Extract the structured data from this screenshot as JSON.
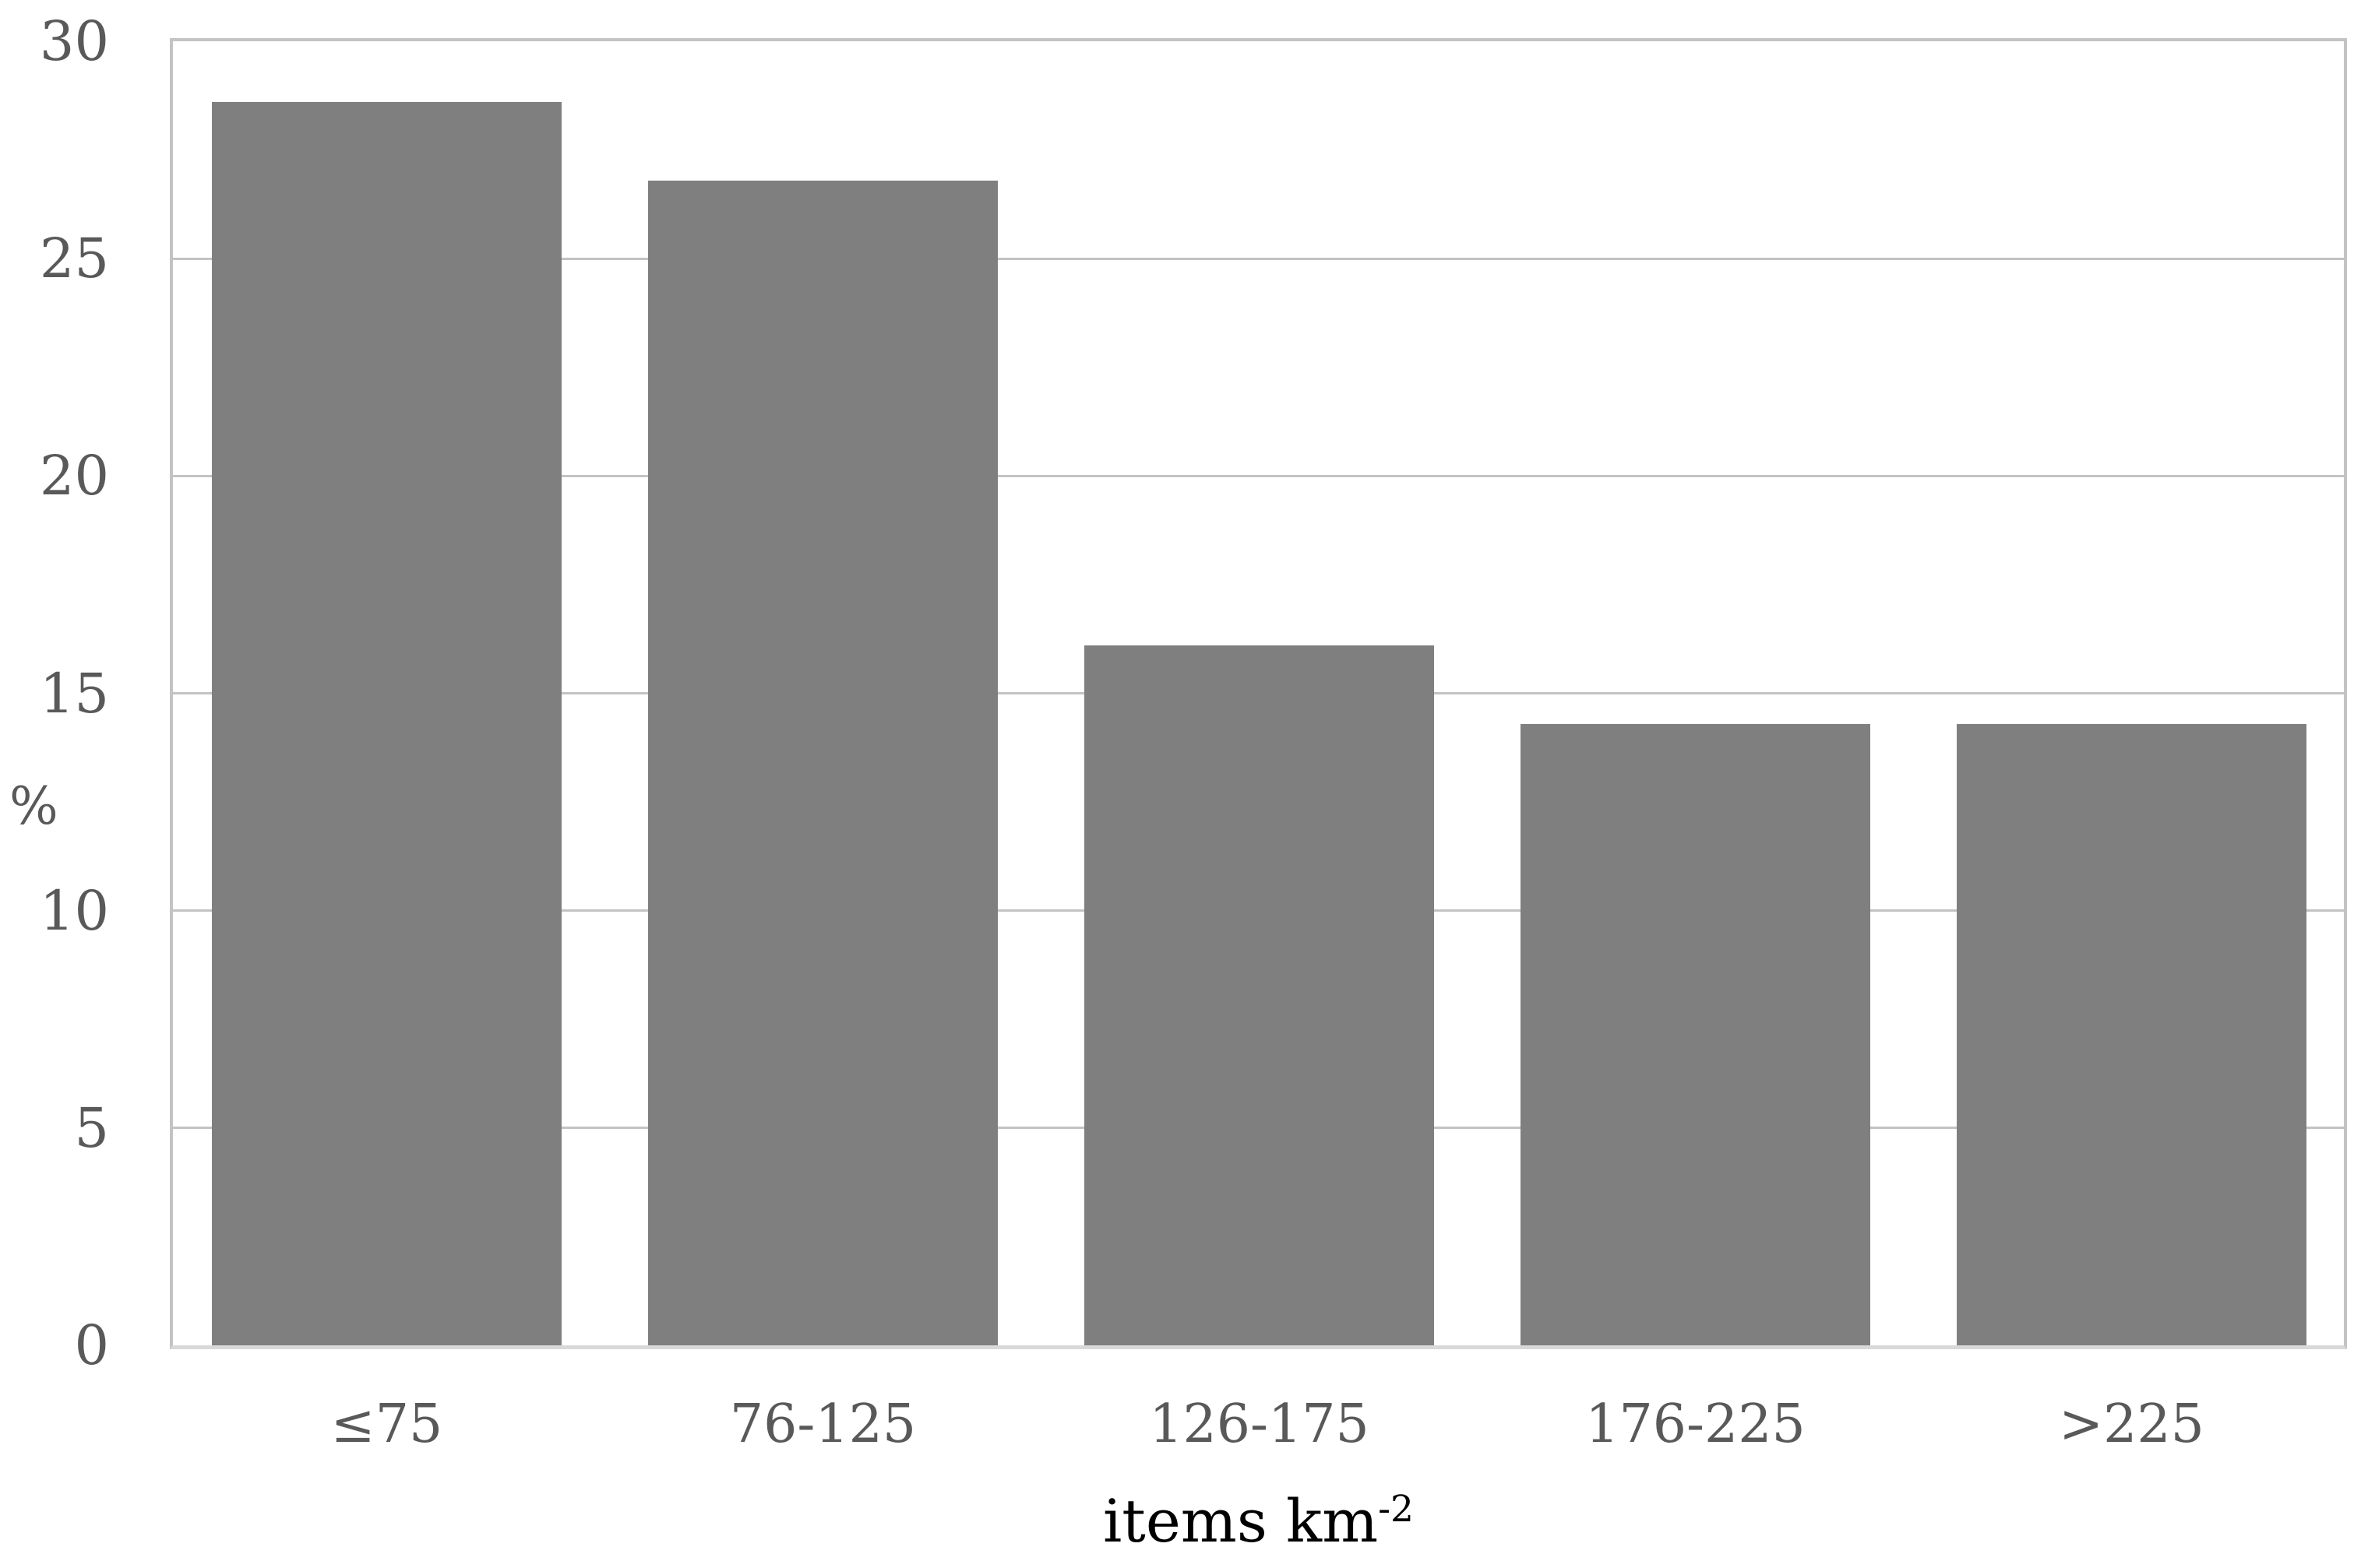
{
  "chart_data": {
    "type": "bar",
    "title": "",
    "categories": [
      "≤75",
      "76-125",
      "126-175",
      "176-225",
      ">225"
    ],
    "values": [
      28.6,
      26.8,
      16.1,
      14.3,
      14.3
    ],
    "xlabel": "items km⁻²",
    "xlabel_base": "items km",
    "xlabel_superscript": "-2",
    "ylabel": "%",
    "ylim": [
      0,
      30
    ],
    "yticks": [
      0,
      5,
      10,
      15,
      20,
      25,
      30
    ],
    "grid": true,
    "legend": false,
    "colors": {
      "bar": "#7f7f7f",
      "gridline": "#c3c3c3",
      "plot_border": "#c3c3c3",
      "baseline": "#d9d9d9",
      "tick_label": "#595959",
      "axis_title": "#000000",
      "background": "#ffffff"
    }
  }
}
